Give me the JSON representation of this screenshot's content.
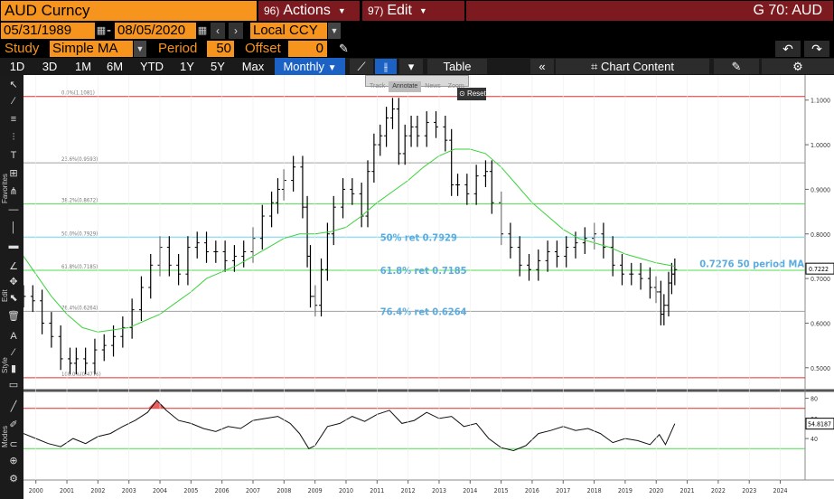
{
  "header": {
    "ticker": "AUD Curncy",
    "actions": {
      "num": "96)",
      "label": "Actions"
    },
    "edit": {
      "num": "97)",
      "label": "Edit"
    },
    "window_title": "G 70: AUD"
  },
  "range": {
    "start": "05/31/1989",
    "sep": "-",
    "end": "08/05/2020",
    "currency": "Local CCY"
  },
  "study": {
    "study_label": "Study",
    "study_value": "Simple MA",
    "period_label": "Period",
    "period_value": "50",
    "offset_label": "Offset",
    "offset_value": "0"
  },
  "toolbar": {
    "periods": [
      "1D",
      "3D",
      "1M",
      "6M",
      "YTD",
      "1Y",
      "5Y",
      "Max"
    ],
    "frequency": "Monthly",
    "table_label": "Table",
    "chart_content_label": "Chart Content"
  },
  "mini_toolbar": {
    "items": [
      "Track",
      "Annotate",
      "News",
      "Zoom"
    ],
    "reset": "Reset"
  },
  "side_labels": {
    "favorites": "Favorites",
    "edit": "Edit",
    "style": "Style",
    "modes": "Modes"
  },
  "colors": {
    "price": "#000000",
    "ma": "#3ad23a",
    "fib_red": "#e03030",
    "fib_green": "#4fdc4f",
    "fib_cyan": "#6ad6f0",
    "fib_gray": "#a0a0a0",
    "annotation_blue": "#5aace0",
    "accent_orange": "#f7941d",
    "brand_red": "#7d1a1f",
    "active_blue": "#1c62c4"
  },
  "chart_data": [
    {
      "type": "line",
      "title": "",
      "y_ticks": [
        "1.1000",
        "1.0000",
        "0.9000",
        "0.8000",
        "0.7000",
        "0.6000",
        "0.5000"
      ],
      "ylim": [
        0.455,
        1.14
      ],
      "x_ticks": [
        "2000",
        "2001",
        "2002",
        "2003",
        "2004",
        "2005",
        "2006",
        "2007",
        "2008",
        "2009",
        "2010",
        "2011",
        "2012",
        "2013",
        "2014",
        "2015",
        "2016",
        "2017",
        "2018",
        "2019",
        "2020",
        "2021",
        "2022",
        "2023",
        "2024"
      ],
      "xlim": [
        1999.6,
        2024.8
      ],
      "fib_levels": [
        {
          "label": "0.0%(1.1081)",
          "value": 1.1081,
          "color": "#e03030"
        },
        {
          "label": "23.6%(0.9593)",
          "value": 0.9593,
          "color": "#a0a0a0"
        },
        {
          "label": "38.2%(0.8672)",
          "value": 0.8672,
          "color": "#4fdc4f"
        },
        {
          "label": "50.0%(0.7929)",
          "value": 0.7929,
          "color": "#6ad6f0"
        },
        {
          "label": "61.8%(0.7185)",
          "value": 0.7185,
          "color": "#4fdc4f"
        },
        {
          "label": "76.4%(0.6264)",
          "value": 0.6264,
          "color": "#a0a0a0"
        },
        {
          "label": "100.0%(0.4776)",
          "value": 0.4776,
          "color": "#e03030"
        }
      ],
      "annotations": [
        {
          "text": "50% ret 0.7929",
          "x": 2011.1,
          "y": 0.7929
        },
        {
          "text": "61.8% ret 0.7185",
          "x": 2011.1,
          "y": 0.7185
        },
        {
          "text": "76.4% ret 0.6264",
          "x": 2011.1,
          "y": 0.6264
        },
        {
          "text": "0.7276 50 period MA",
          "x": 2021.4,
          "y": 0.7276
        }
      ],
      "last_price": "0.7222",
      "series": [
        {
          "name": "",
          "style": "ohlc",
          "x": [
            1999.6,
            1999.9,
            2000.2,
            2000.5,
            2000.8,
            2001.1,
            2001.3,
            2001.6,
            2001.9,
            2002.2,
            2002.5,
            2002.8,
            2003.1,
            2003.4,
            2003.7,
            2004.0,
            2004.3,
            2004.6,
            2004.9,
            2005.2,
            2005.5,
            2005.8,
            2006.1,
            2006.4,
            2006.7,
            2007.0,
            2007.3,
            2007.6,
            2007.8,
            2008.0,
            2008.3,
            2008.6,
            2008.75,
            2008.85,
            2009.0,
            2009.2,
            2009.4,
            2009.6,
            2009.9,
            2010.2,
            2010.5,
            2010.7,
            2010.9,
            2011.1,
            2011.3,
            2011.5,
            2011.7,
            2011.9,
            2012.1,
            2012.3,
            2012.6,
            2012.9,
            2013.2,
            2013.4,
            2013.6,
            2013.9,
            2014.2,
            2014.5,
            2014.7,
            2015.0,
            2015.3,
            2015.6,
            2015.9,
            2016.2,
            2016.5,
            2016.8,
            2017.1,
            2017.4,
            2017.7,
            2018.0,
            2018.3,
            2018.6,
            2018.9,
            2019.2,
            2019.5,
            2019.8,
            2020.0,
            2020.15,
            2020.25,
            2020.4,
            2020.5,
            2020.6
          ],
          "y": [
            0.66,
            0.65,
            0.6,
            0.57,
            0.52,
            0.51,
            0.52,
            0.51,
            0.54,
            0.55,
            0.57,
            0.59,
            0.63,
            0.68,
            0.73,
            0.77,
            0.73,
            0.71,
            0.77,
            0.78,
            0.76,
            0.76,
            0.74,
            0.75,
            0.76,
            0.79,
            0.84,
            0.87,
            0.9,
            0.92,
            0.95,
            0.86,
            0.75,
            0.66,
            0.64,
            0.72,
            0.8,
            0.86,
            0.9,
            0.89,
            0.84,
            0.94,
            1.0,
            1.02,
            1.06,
            1.08,
            0.98,
            1.02,
            1.04,
            1.02,
            1.05,
            1.04,
            1.01,
            0.91,
            0.91,
            0.89,
            0.93,
            0.94,
            0.87,
            0.8,
            0.77,
            0.73,
            0.72,
            0.74,
            0.76,
            0.75,
            0.77,
            0.78,
            0.79,
            0.8,
            0.77,
            0.73,
            0.71,
            0.71,
            0.7,
            0.68,
            0.67,
            0.62,
            0.64,
            0.69,
            0.71,
            0.72
          ]
        },
        {
          "name": "",
          "style": "line",
          "color": "#3ad23a",
          "x": [
            1999.6,
            2000.0,
            2000.5,
            2001.0,
            2001.5,
            2002.0,
            2002.5,
            2003.0,
            2003.5,
            2004.0,
            2004.5,
            2005.0,
            2005.5,
            2006.0,
            2006.5,
            2007.0,
            2007.5,
            2008.0,
            2008.5,
            2009.0,
            2009.5,
            2010.0,
            2010.5,
            2011.0,
            2011.5,
            2012.0,
            2012.5,
            2013.0,
            2013.5,
            2014.0,
            2014.5,
            2015.0,
            2015.5,
            2016.0,
            2016.5,
            2017.0,
            2017.5,
            2018.0,
            2018.5,
            2019.0,
            2019.5,
            2020.0,
            2020.6
          ],
          "y": [
            0.75,
            0.71,
            0.66,
            0.62,
            0.59,
            0.58,
            0.585,
            0.59,
            0.605,
            0.62,
            0.645,
            0.67,
            0.7,
            0.715,
            0.73,
            0.75,
            0.77,
            0.79,
            0.8,
            0.8,
            0.805,
            0.815,
            0.84,
            0.87,
            0.895,
            0.92,
            0.95,
            0.975,
            0.99,
            0.99,
            0.98,
            0.95,
            0.91,
            0.87,
            0.84,
            0.81,
            0.79,
            0.78,
            0.77,
            0.755,
            0.745,
            0.735,
            0.7276
          ]
        }
      ]
    },
    {
      "type": "line",
      "title": "",
      "y_ticks": [
        "80",
        "60",
        "40"
      ],
      "ylim": [
        15,
        85
      ],
      "upper_band": 70,
      "lower_band": 30,
      "last_value": "54.8187",
      "series": [
        {
          "name": "",
          "color": "#111111",
          "x": [
            1999.6,
            2000.0,
            2000.4,
            2000.8,
            2001.2,
            2001.6,
            2002.0,
            2002.4,
            2002.8,
            2003.2,
            2003.6,
            2003.9,
            2004.2,
            2004.6,
            2005.0,
            2005.4,
            2005.8,
            2006.2,
            2006.6,
            2007.0,
            2007.4,
            2007.8,
            2008.2,
            2008.5,
            2008.8,
            2009.0,
            2009.4,
            2009.8,
            2010.2,
            2010.6,
            2011.0,
            2011.4,
            2011.8,
            2012.2,
            2012.6,
            2013.0,
            2013.4,
            2013.8,
            2014.2,
            2014.6,
            2015.0,
            2015.4,
            2015.8,
            2016.2,
            2016.6,
            2017.0,
            2017.4,
            2017.8,
            2018.2,
            2018.6,
            2019.0,
            2019.4,
            2019.8,
            2020.1,
            2020.3,
            2020.6
          ],
          "y": [
            45,
            40,
            35,
            32,
            40,
            35,
            42,
            45,
            52,
            58,
            66,
            78,
            68,
            58,
            55,
            50,
            47,
            52,
            50,
            58,
            60,
            62,
            55,
            45,
            30,
            33,
            52,
            55,
            62,
            57,
            64,
            68,
            55,
            58,
            66,
            60,
            62,
            52,
            55,
            40,
            31,
            28,
            33,
            45,
            48,
            52,
            48,
            50,
            45,
            36,
            40,
            38,
            34,
            44,
            34,
            54.8
          ]
        }
      ]
    }
  ]
}
